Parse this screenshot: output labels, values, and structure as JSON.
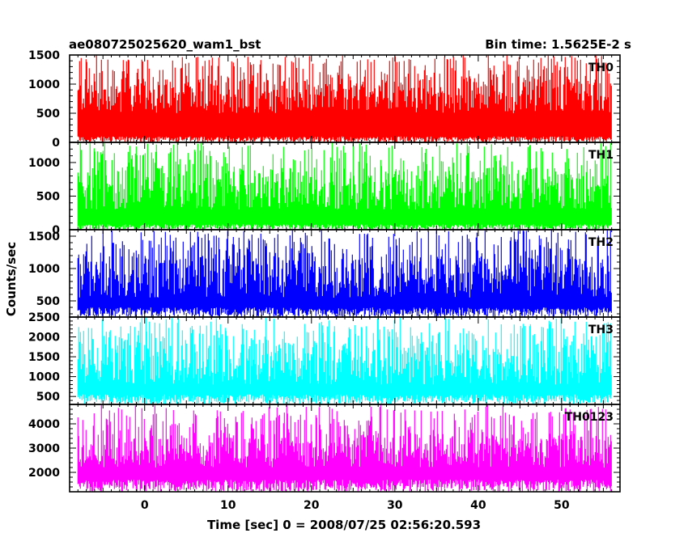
{
  "chart_data": {
    "type": "line",
    "title": "ae080725025620_wam1_bst",
    "subtitle": "Bin time: 1.5625E-2 s",
    "xlabel": "Time [sec] 0 = 2008/07/25 02:56:20.593",
    "ylabel": "Counts/sec",
    "xlim": [
      -9,
      57
    ],
    "x_range_data": [
      -8,
      56
    ],
    "x_ticks": [
      0,
      10,
      20,
      30,
      40,
      50
    ],
    "grid": false,
    "panels": [
      {
        "name": "TH0",
        "color": "#ff0000",
        "ylim": [
          0,
          1500
        ],
        "y_ticks": [
          0,
          500,
          1000,
          1500
        ],
        "baseline_range": [
          0,
          100
        ],
        "typical_range": [
          500,
          1100
        ],
        "peak_max": 1500
      },
      {
        "name": "TH1",
        "color": "#00ff00",
        "ylim": [
          0,
          1300
        ],
        "y_ticks": [
          0,
          500,
          1000
        ],
        "baseline_range": [
          0,
          80
        ],
        "typical_range": [
          300,
          900
        ],
        "peak_max": 1300
      },
      {
        "name": "TH2",
        "color": "#0000ff",
        "ylim": [
          250,
          1600
        ],
        "y_ticks": [
          500,
          1000,
          1500
        ],
        "baseline_range": [
          250,
          400
        ],
        "typical_range": [
          550,
          1200
        ],
        "peak_max": 1600
      },
      {
        "name": "TH3",
        "color": "#00ffff",
        "ylim": [
          300,
          2500
        ],
        "y_ticks": [
          500,
          1000,
          1500,
          2000,
          2500
        ],
        "baseline_range": [
          300,
          550
        ],
        "typical_range": [
          800,
          1800
        ],
        "peak_max": 2500
      },
      {
        "name": "TH0123",
        "color": "#ff00ff",
        "ylim": [
          1200,
          4800
        ],
        "y_ticks": [
          2000,
          3000,
          4000
        ],
        "baseline_range": [
          1200,
          1700
        ],
        "typical_range": [
          2200,
          3600
        ],
        "peak_max": 4800
      }
    ]
  }
}
